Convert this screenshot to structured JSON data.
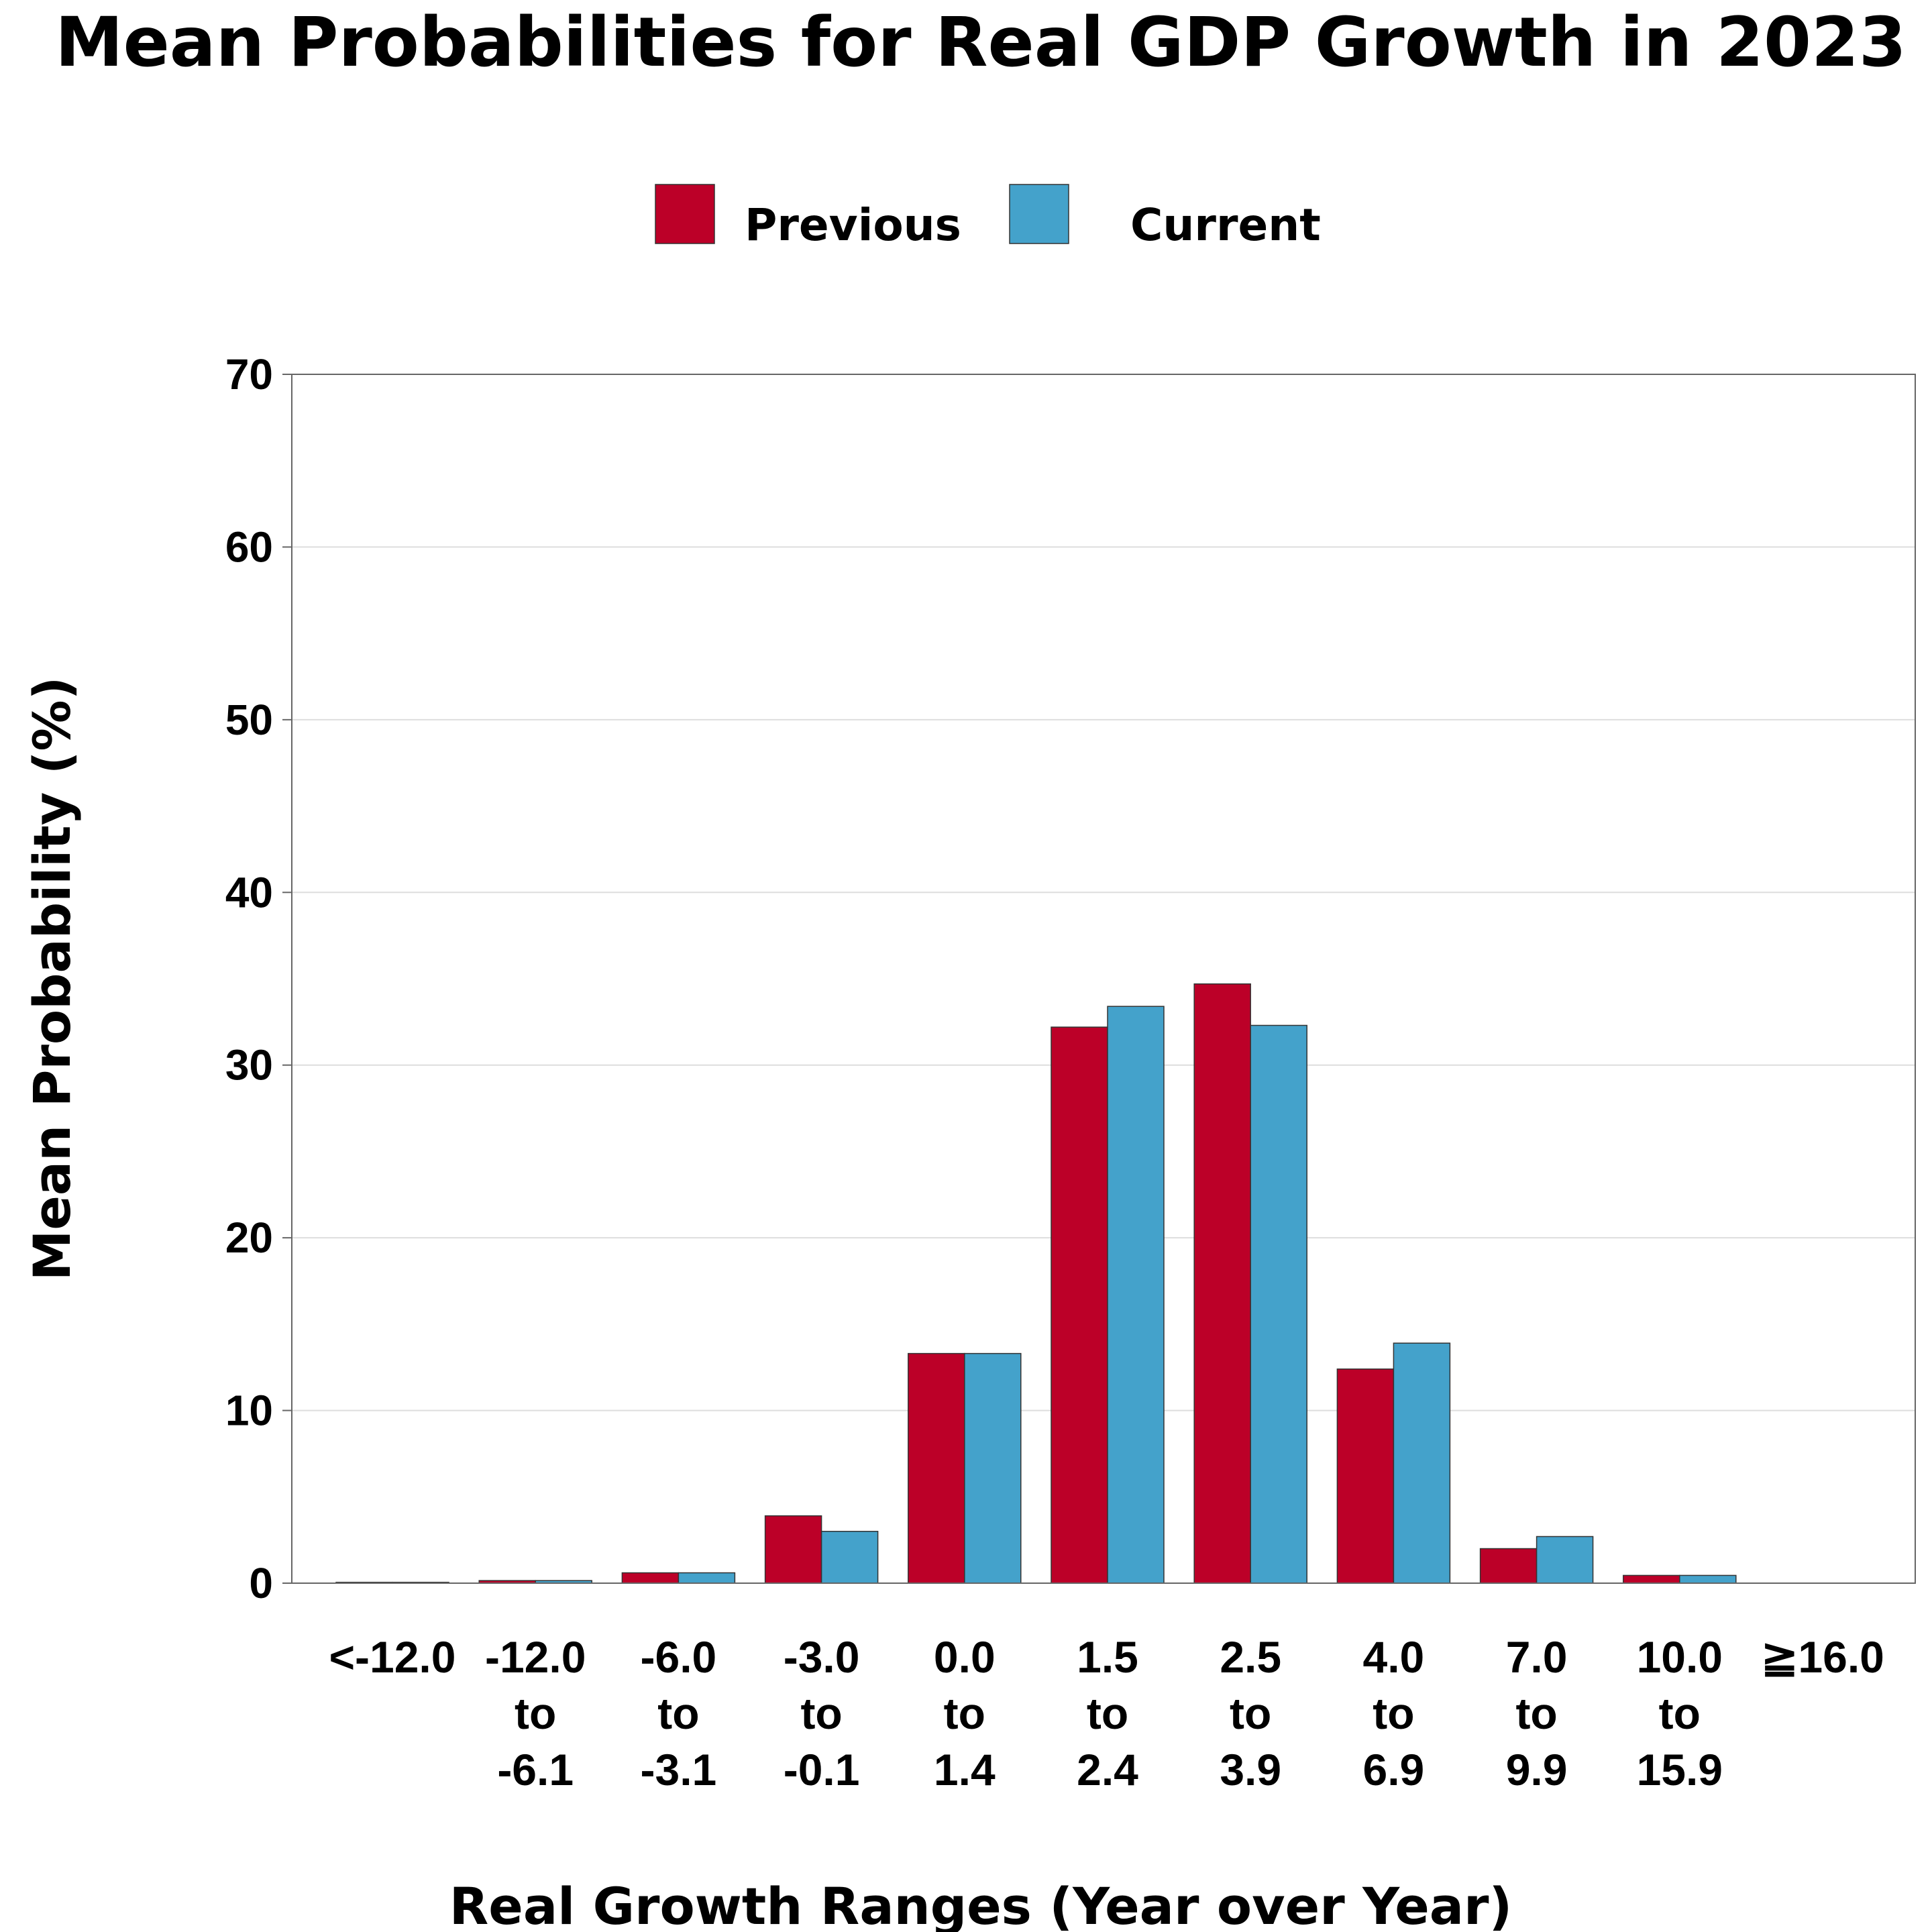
{
  "colors": {
    "previous": "#bc0028",
    "current": "#44a2cb",
    "grid": "#dedede",
    "axis": "#666666"
  },
  "chart_data": {
    "type": "bar",
    "title": "Mean Probabilities for Real GDP Growth in 2023",
    "xlabel": "Real Growth Ranges (Year over Year)",
    "ylabel": "Mean Probability (%)",
    "ylim": [
      0,
      70
    ],
    "yticks": [
      0,
      10,
      20,
      30,
      40,
      50,
      60,
      70
    ],
    "grid": true,
    "legend_position": "top-center",
    "categories": [
      [
        "<-12.0"
      ],
      [
        "-12.0",
        "to",
        "-6.1"
      ],
      [
        "-6.0",
        "to",
        "-3.1"
      ],
      [
        "-3.0",
        "to",
        "-0.1"
      ],
      [
        "0.0",
        "to",
        "1.4"
      ],
      [
        "1.5",
        "to",
        "2.4"
      ],
      [
        "2.5",
        "to",
        "3.9"
      ],
      [
        "4.0",
        "to",
        "6.9"
      ],
      [
        "7.0",
        "to",
        "9.9"
      ],
      [
        "10.0",
        "to",
        "15.9"
      ],
      [
        "≧16.0"
      ]
    ],
    "series": [
      {
        "name": "Previous",
        "values": [
          0.05,
          0.15,
          0.6,
          3.9,
          13.3,
          32.2,
          34.7,
          12.4,
          2.0,
          0.45,
          0.0
        ]
      },
      {
        "name": "Current",
        "values": [
          0.05,
          0.15,
          0.6,
          3.0,
          13.3,
          33.4,
          32.3,
          13.9,
          2.7,
          0.45,
          0.0
        ]
      }
    ]
  }
}
